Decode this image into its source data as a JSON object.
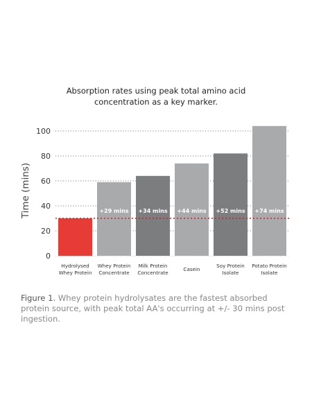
{
  "chart_data": {
    "type": "bar",
    "title_lines": [
      "Absorption rates using peak total amino acid",
      "concentration as a key marker."
    ],
    "ylabel": "Time (mins)",
    "ylim": [
      0,
      100
    ],
    "yticks": [
      0,
      20,
      40,
      60,
      80,
      100
    ],
    "grid": "dotted horizontal",
    "categories": [
      [
        "Hydrolysed",
        "Whey Protein"
      ],
      [
        "Whey Protein",
        "Concentrate"
      ],
      [
        "Milk Protein",
        "Concentrate"
      ],
      [
        "Casein"
      ],
      [
        "Soy Protein",
        "Isolate"
      ],
      [
        "Potato Protein",
        "Isolate"
      ]
    ],
    "values": [
      30,
      59,
      64,
      74,
      82,
      104
    ],
    "bar_labels": [
      "",
      "+29 mins",
      "+34 mins",
      "+44 mins",
      "+52 mins",
      "+74 mins"
    ],
    "reference_line": 30,
    "colors": {
      "bars": [
        "#e63c35",
        "#a9aaac",
        "#7c7d7f",
        "#a9aaac",
        "#7c7d7f",
        "#a9aaac"
      ],
      "reference_line": "#d11f1f",
      "grid": "#9a9a9a"
    }
  },
  "caption": {
    "lead": "Figure 1.",
    "text": "Whey protein hydrolysates are the fastest absorbed protein source, with peak total AA's occurring at +/- 30 mins post ingestion."
  }
}
